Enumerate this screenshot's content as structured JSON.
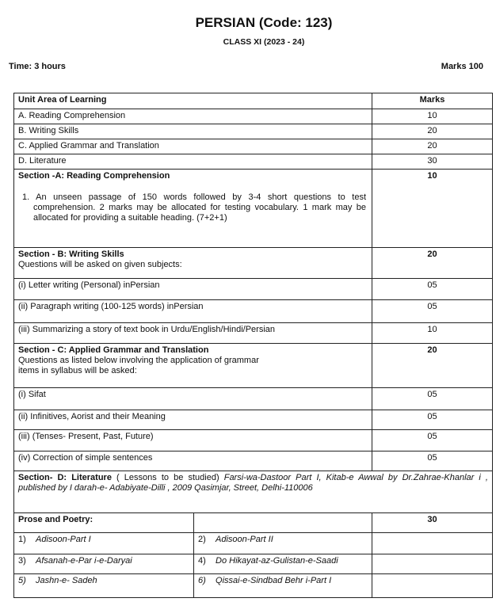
{
  "header": {
    "title": "PERSIAN (Code: 123)",
    "subtitle": "CLASS XI (2023 - 24)",
    "time": "Time: 3 hours",
    "marks": "Marks 100"
  },
  "table": {
    "col_unit": "Unit Area of Learning",
    "col_marks": "Marks",
    "units": [
      {
        "label": "A. Reading Comprehension",
        "marks": "10"
      },
      {
        "label": "B. Writing Skills",
        "marks": "20"
      },
      {
        "label": "C. Applied Grammar and Translation",
        "marks": "20"
      },
      {
        "label": "D. Literature",
        "marks": "30"
      }
    ],
    "section_a": {
      "title": "Section -A: Reading Comprehension",
      "marks": "10",
      "text": "1. An unseen passage of 150 words followed by 3-4 short questions to test comprehension. 2 marks may be allocated for testing vocabulary. 1 mark may be allocated for providing a suitable heading. (7+2+1)"
    },
    "section_b": {
      "title": "Section - B: Writing Skills",
      "marks": "20",
      "text": "Questions will be asked on given subjects:",
      "items": [
        {
          "label": "(i)   Letter writing (Personal) inPersian",
          "marks": "05"
        },
        {
          "label": "(ii) Paragraph writing (100-125 words) inPersian",
          "marks": "05"
        },
        {
          "label": "(iii) Summarizing a story of text book in Urdu/English/Hindi/Persian",
          "marks": "10"
        }
      ]
    },
    "section_c": {
      "title": "Section - C: Applied Grammar and Translation",
      "marks": "20",
      "text1": "Questions as listed below involving the application of grammar",
      "text2": "items in syllabus will be asked:",
      "items": [
        {
          "label": "(i)   Sifat",
          "marks": "05"
        },
        {
          "label": "(ii) Infinitives, Aorist and their Meaning",
          "marks": "05"
        },
        {
          "label": "(iii) (Tenses- Present, Past, Future)",
          "marks": "05"
        },
        {
          "label": "(iv) Correction of simple sentences",
          "marks": "05"
        }
      ]
    },
    "section_d": {
      "title": "Section- D: Literature",
      "text": " ( Lessons to be studied) ",
      "book": "Farsi-wa-Dastoor Part I, Kitab-e Awwal by Dr.Zahrae-Khanlar i , published by I darah-e- Adabiyate-Dilli , 2009 Qasimjar, Street, Delhi-110006"
    },
    "prose": {
      "title": "Prose and Poetry:",
      "marks": "30",
      "lessons": [
        [
          "1)",
          "Adisoon-Part I",
          "2)",
          "Adisoon-Part II"
        ],
        [
          "3)",
          "Afsanah-e-Par i-e-Daryai",
          "4)",
          "Do Hikayat-az-Gulistan-e-Saadi"
        ],
        [
          "5)",
          "Jashn-e- Sadeh",
          "6)",
          "Qissai-e-Sindbad Behr i-Part I"
        ]
      ]
    }
  }
}
